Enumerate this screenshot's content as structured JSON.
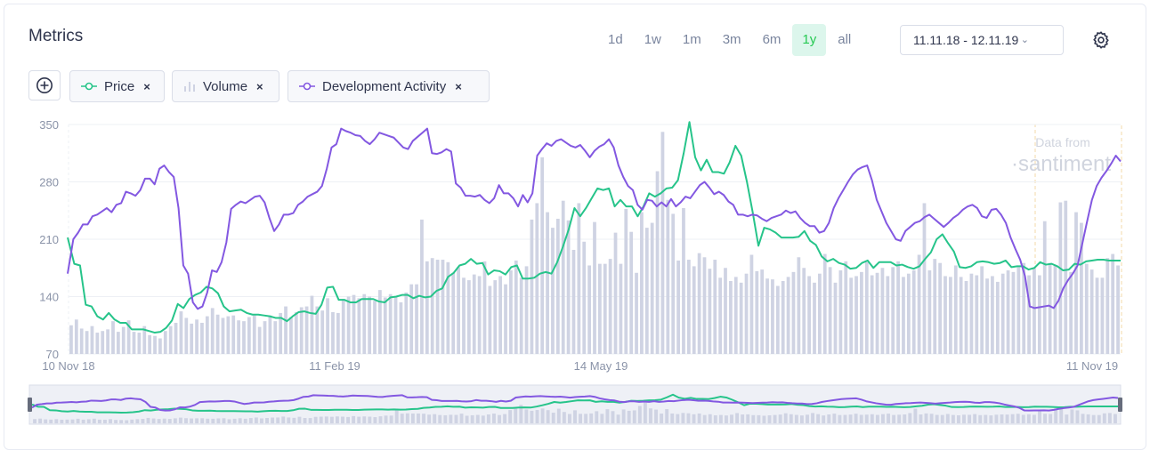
{
  "header": {
    "title": "Metrics",
    "periods": [
      "1d",
      "1w",
      "1m",
      "3m",
      "6m",
      "1y",
      "all"
    ],
    "active_period": "1y",
    "date_range": "11.11.18 - 12.11.19"
  },
  "metrics": [
    {
      "label": "Price",
      "remove": "×",
      "icon": "line-circle-icon"
    },
    {
      "label": "Volume",
      "remove": "×",
      "icon": "bar-chart-icon"
    },
    {
      "label": "Development Activity",
      "remove": "×",
      "icon": "line-circle-icon"
    }
  ],
  "watermark": {
    "line1": "Data from",
    "line2": "·santiment"
  },
  "colors": {
    "price": "#26c48a",
    "dev": "#8358e1",
    "volume": "#cfd3e3",
    "active_bg": "#dcf6ec",
    "active_text": "#26c953"
  },
  "chart_data": {
    "type": "line",
    "title": "Metrics",
    "y_ticks": [
      "350",
      "280",
      "210",
      "140",
      "70"
    ],
    "ylim": [
      70,
      350
    ],
    "x_ticks": [
      "10 Nov 18",
      "11 Feb 19",
      "14 May 19",
      "11 Nov 19"
    ],
    "series": [
      {
        "name": "Price",
        "color": "#26c48a",
        "values": [
          212,
          180,
          178,
          130,
          128,
          116,
          112,
          120,
          112,
          108,
          108,
          100,
          100,
          100,
          98,
          96,
          97,
          102,
          111,
          131,
          126,
          137,
          142,
          145,
          152,
          150,
          144,
          128,
          122,
          123,
          124,
          120,
          118,
          118,
          117,
          116,
          114,
          114,
          110,
          116,
          121,
          122,
          120,
          119,
          130,
          151,
          152,
          136,
          136,
          133,
          133,
          137,
          137,
          137,
          134,
          133,
          139,
          140,
          142,
          142,
          138,
          141,
          139,
          140,
          147,
          150,
          164,
          169,
          178,
          180,
          186,
          180,
          181,
          167,
          172,
          171,
          167,
          176,
          178,
          162,
          162,
          163,
          168,
          170,
          168,
          182,
          201,
          222,
          248,
          238,
          248,
          260,
          272,
          270,
          272,
          250,
          258,
          250,
          250,
          238,
          250,
          266,
          262,
          266,
          272,
          273,
          282,
          315,
          353,
          310,
          294,
          307,
          292,
          292,
          290,
          304,
          324,
          312,
          280,
          243,
          202,
          224,
          222,
          218,
          212,
          212,
          212,
          213,
          220,
          208,
          203,
          189,
          183,
          186,
          181,
          179,
          174,
          175,
          181,
          184,
          175,
          182,
          182,
          182,
          178,
          179,
          176,
          174,
          177,
          186,
          194,
          210,
          216,
          205,
          195,
          176,
          175,
          177,
          182,
          183,
          182,
          180,
          181,
          184,
          176,
          177,
          177,
          173,
          175,
          182,
          179,
          180,
          177,
          172,
          173,
          180,
          179,
          183,
          184,
          185,
          185,
          184,
          184,
          184
        ]
      },
      {
        "name": "Volume",
        "color": "#cfd3e3",
        "values": [
          105,
          112,
          101,
          98,
          104,
          96,
          98,
          100,
          110,
          97,
          103,
          111,
          97,
          96,
          104,
          93,
          92,
          89,
          98,
          104,
          108,
          122,
          114,
          107,
          112,
          108,
          116,
          126,
          118,
          114,
          116,
          117,
          111,
          110,
          115,
          117,
          103,
          110,
          117,
          110,
          120,
          128,
          115,
          121,
          127,
          128,
          141,
          128,
          123,
          138,
          121,
          120,
          137,
          140,
          142,
          138,
          143,
          140,
          135,
          148,
          139,
          143,
          140,
          133,
          145,
          155,
          155,
          234,
          183,
          187,
          185,
          185,
          182,
          169,
          176,
          163,
          160,
          167,
          165,
          183,
          153,
          160,
          165,
          155,
          172,
          184,
          163,
          177,
          234,
          254,
          310,
          243,
          224,
          235,
          257,
          233,
          197,
          254,
          207,
          178,
          231,
          180,
          180,
          186,
          218,
          180,
          247,
          219,
          169,
          243,
          224,
          230,
          293,
          341,
          258,
          241,
          184,
          248,
          185,
          177,
          193,
          188,
          174,
          185,
          163,
          175,
          159,
          164,
          157,
          168,
          191,
          171,
          173,
          162,
          161,
          153,
          159,
          164,
          170,
          188,
          175,
          165,
          157,
          168,
          192,
          176,
          157,
          172,
          183,
          163,
          165,
          170,
          182,
          166,
          169,
          175,
          165,
          176,
          183,
          164,
          168,
          172,
          191,
          254,
          172,
          186,
          181,
          165,
          164,
          178,
          164,
          159,
          168,
          166,
          177,
          162,
          165,
          158,
          168,
          172,
          170,
          176,
          181,
          166,
          174,
          166,
          232,
          181,
          178,
          255,
          257,
          170,
          243,
          230,
          180,
          173,
          163,
          163,
          187,
          192,
          178
        ]
      },
      {
        "name": "Development Activity",
        "color": "#8358e1",
        "values": [
          168,
          210,
          218,
          228,
          228,
          238,
          240,
          244,
          248,
          243,
          252,
          254,
          268,
          266,
          263,
          270,
          284,
          284,
          277,
          296,
          300,
          292,
          286,
          248,
          178,
          168,
          133,
          125,
          128,
          145,
          172,
          170,
          182,
          206,
          247,
          252,
          256,
          254,
          258,
          262,
          263,
          255,
          236,
          220,
          228,
          240,
          240,
          242,
          252,
          256,
          262,
          265,
          268,
          275,
          296,
          322,
          326,
          345,
          342,
          340,
          337,
          336,
          330,
          326,
          332,
          340,
          338,
          336,
          334,
          328,
          322,
          320,
          330,
          335,
          340,
          345,
          315,
          314,
          316,
          320,
          317,
          278,
          273,
          263,
          263,
          262,
          264,
          258,
          254,
          260,
          276,
          266,
          266,
          260,
          250,
          264,
          255,
          266,
          312,
          320,
          327,
          324,
          330,
          332,
          328,
          324,
          322,
          325,
          318,
          310,
          318,
          323,
          326,
          332,
          322,
          300,
          286,
          275,
          270,
          252,
          246,
          258,
          257,
          250,
          255,
          250,
          259,
          250,
          255,
          262,
          260,
          268,
          276,
          280,
          273,
          265,
          268,
          264,
          256,
          252,
          240,
          240,
          238,
          240,
          239,
          235,
          232,
          236,
          238,
          240,
          245,
          242,
          244,
          236,
          230,
          226,
          226,
          218,
          220,
          230,
          248,
          260,
          270,
          280,
          289,
          295,
          298,
          300,
          282,
          258,
          244,
          230,
          220,
          210,
          208,
          220,
          225,
          230,
          232,
          237,
          240,
          235,
          230,
          225,
          230,
          236,
          240,
          246,
          250,
          252,
          248,
          238,
          236,
          246,
          247,
          240,
          230,
          212,
          198,
          185,
          165,
          128,
          126,
          127,
          128,
          129,
          126,
          135,
          150,
          160,
          168,
          178,
          205,
          232,
          258,
          275,
          285,
          293,
          302,
          312,
          305
        ]
      }
    ]
  },
  "navigator": {}
}
